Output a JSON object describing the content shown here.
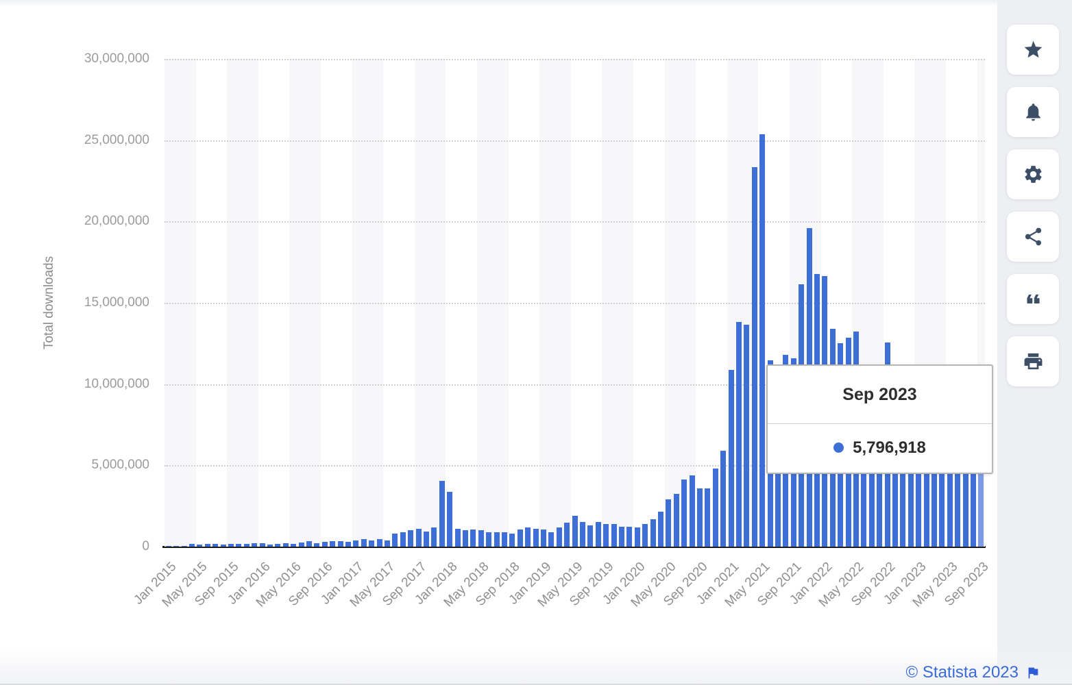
{
  "chart_data": {
    "type": "bar",
    "title": "",
    "xlabel": "",
    "ylabel": "Total downloads",
    "ylim": [
      0,
      30000000
    ],
    "grid": "dotted-horizontal",
    "ytick_labels": [
      "0",
      "5,000,000",
      "10,000,000",
      "15,000,000",
      "20,000,000",
      "25,000,000",
      "30,000,000"
    ],
    "xtick_every": 4,
    "bar_color": "#3d6fd6",
    "highlight_color": "#7d9ce8",
    "highlight_index": 104,
    "categories": [
      "Jan 2015",
      "Feb 2015",
      "Mar 2015",
      "Apr 2015",
      "May 2015",
      "Jun 2015",
      "Jul 2015",
      "Aug 2015",
      "Sep 2015",
      "Oct 2015",
      "Nov 2015",
      "Dec 2015",
      "Jan 2016",
      "Feb 2016",
      "Mar 2016",
      "Apr 2016",
      "May 2016",
      "Jun 2016",
      "Jul 2016",
      "Aug 2016",
      "Sep 2016",
      "Oct 2016",
      "Nov 2016",
      "Dec 2016",
      "Jan 2017",
      "Feb 2017",
      "Mar 2017",
      "Apr 2017",
      "May 2017",
      "Jun 2017",
      "Jul 2017",
      "Aug 2017",
      "Sep 2017",
      "Oct 2017",
      "Nov 2017",
      "Dec 2017",
      "Jan 2018",
      "Feb 2018",
      "Mar 2018",
      "Apr 2018",
      "May 2018",
      "Jun 2018",
      "Jul 2018",
      "Aug 2018",
      "Sep 2018",
      "Oct 2018",
      "Nov 2018",
      "Dec 2018",
      "Jan 2019",
      "Feb 2019",
      "Mar 2019",
      "Apr 2019",
      "May 2019",
      "Jun 2019",
      "Jul 2019",
      "Aug 2019",
      "Sep 2019",
      "Oct 2019",
      "Nov 2019",
      "Dec 2019",
      "Jan 2020",
      "Feb 2020",
      "Mar 2020",
      "Apr 2020",
      "May 2020",
      "Jun 2020",
      "Jul 2020",
      "Aug 2020",
      "Sep 2020",
      "Oct 2020",
      "Nov 2020",
      "Dec 2020",
      "Jan 2021",
      "Feb 2021",
      "Mar 2021",
      "Apr 2021",
      "May 2021",
      "Jun 2021",
      "Jul 2021",
      "Aug 2021",
      "Sep 2021",
      "Oct 2021",
      "Nov 2021",
      "Dec 2021",
      "Jan 2022",
      "Feb 2022",
      "Mar 2022",
      "Apr 2022",
      "May 2022",
      "Jun 2022",
      "Jul 2022",
      "Aug 2022",
      "Sep 2022",
      "Oct 2022",
      "Nov 2022",
      "Dec 2022",
      "Jan 2023",
      "Feb 2023",
      "Mar 2023",
      "Apr 2023",
      "May 2023",
      "Jun 2023",
      "Jul 2023",
      "Aug 2023",
      "Sep 2023"
    ],
    "values": [
      20000,
      30000,
      50000,
      150000,
      130000,
      150000,
      160000,
      130000,
      170000,
      180000,
      170000,
      190000,
      200000,
      120000,
      150000,
      200000,
      180000,
      250000,
      330000,
      200000,
      290000,
      330000,
      330000,
      300000,
      370000,
      450000,
      400000,
      450000,
      400000,
      800000,
      900000,
      1000000,
      1100000,
      920000,
      1180000,
      4050000,
      3350000,
      1100000,
      1000000,
      1050000,
      1000000,
      900000,
      900000,
      900000,
      800000,
      1050000,
      1200000,
      1100000,
      1050000,
      900000,
      1180000,
      1470000,
      1900000,
      1500000,
      1300000,
      1500000,
      1400000,
      1400000,
      1220000,
      1220000,
      1200000,
      1390000,
      1700000,
      2150000,
      2900000,
      3250000,
      4150000,
      4370000,
      3600000,
      3600000,
      4800000,
      5900000,
      10850000,
      13800000,
      13650000,
      23350000,
      25350000,
      11450000,
      10900000,
      11800000,
      11600000,
      16150000,
      19600000,
      16750000,
      16650000,
      13400000,
      12500000,
      12850000,
      13250000,
      10500000,
      10000000,
      10400000,
      12550000,
      10800000,
      10200000,
      9800000,
      9500000,
      8800000,
      8500000,
      8200000,
      7800000,
      7400000,
      7000000,
      6500000,
      5796918
    ]
  },
  "tooltip": {
    "title": "Sep 2023",
    "value": "5,796,918"
  },
  "toolbar": {
    "buttons": [
      {
        "name": "favorite-button",
        "icon": "star-icon"
      },
      {
        "name": "alerts-button",
        "icon": "bell-icon"
      },
      {
        "name": "settings-button",
        "icon": "gear-icon"
      },
      {
        "name": "share-button",
        "icon": "share-icon"
      },
      {
        "name": "cite-button",
        "icon": "quote-icon"
      },
      {
        "name": "print-button",
        "icon": "printer-icon"
      }
    ]
  },
  "footer": {
    "copyright": "© Statista 2023",
    "icon": "flag-icon"
  }
}
